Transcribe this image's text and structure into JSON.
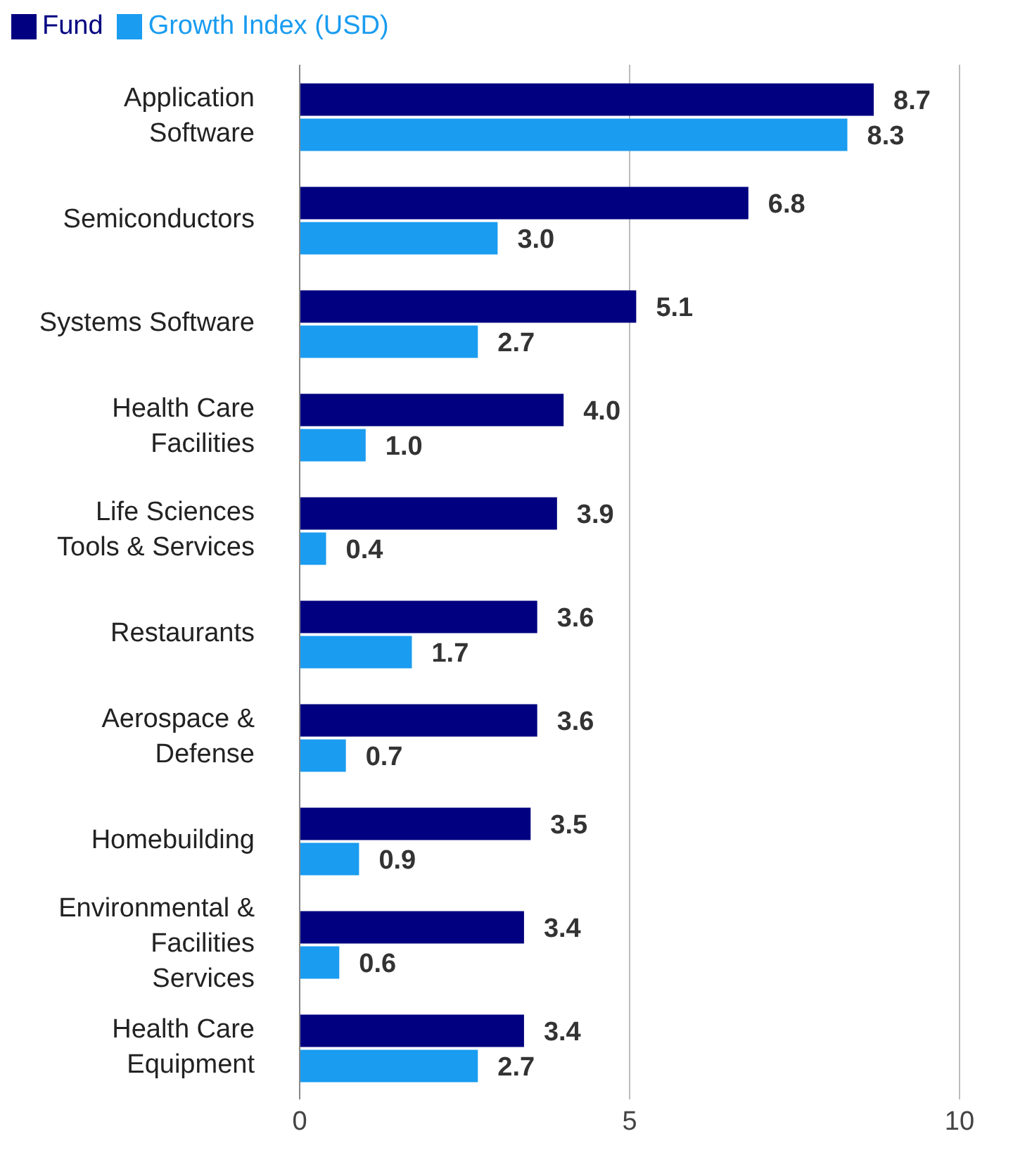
{
  "chart_data": {
    "type": "bar",
    "orientation": "horizontal",
    "categories": [
      "Application Software",
      "Semiconductors",
      "Systems Software",
      "Health Care Facilities",
      "Life Sciences Tools & Services",
      "Restaurants",
      "Aerospace & Defense",
      "Homebuilding",
      "Environmental & Facilities Services",
      "Health Care Equipment"
    ],
    "series": [
      {
        "name": "Fund",
        "color": "#000080",
        "values": [
          8.7,
          6.8,
          5.1,
          4.0,
          3.9,
          3.6,
          3.6,
          3.5,
          3.4,
          3.4
        ],
        "value_labels": [
          "8.7",
          "6.8",
          "5.1",
          "4.0",
          "3.9",
          "3.6",
          "3.6",
          "3.5",
          "3.4",
          "3.4"
        ]
      },
      {
        "name": "Growth Index (USD)",
        "color": "#1a9cf0",
        "values": [
          8.3,
          3.0,
          2.7,
          1.0,
          0.4,
          1.7,
          0.7,
          0.9,
          0.6,
          2.7
        ],
        "value_labels": [
          "8.3",
          "3.0",
          "2.7",
          "1.0",
          "0.4",
          "1.7",
          "0.7",
          "0.9",
          "0.6",
          "2.7"
        ]
      }
    ],
    "xlim": [
      0,
      10
    ],
    "xticks": [
      0,
      5,
      10
    ],
    "grid": "x",
    "legend": "top left"
  }
}
